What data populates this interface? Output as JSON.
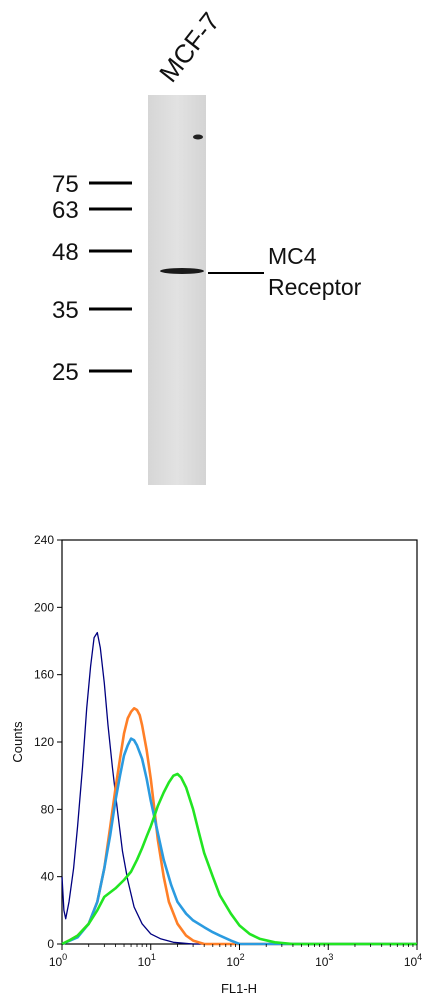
{
  "western_blot": {
    "lane_label": "MCF-7",
    "markers": [
      "75",
      "63",
      "48",
      "35",
      "25"
    ],
    "band_label_line1": "MC4",
    "band_label_line2": "Receptor"
  },
  "chart_data": {
    "type": "line",
    "xlabel": "FL1-H",
    "ylabel": "Counts",
    "xscale": "log",
    "xlim": [
      1,
      10000
    ],
    "ylim": [
      0,
      240
    ],
    "x_ticks": [
      "10",
      "10",
      "10",
      "10",
      "10"
    ],
    "x_tick_exponents": [
      "0",
      "1",
      "2",
      "3",
      "4"
    ],
    "y_ticks": [
      "0",
      "40",
      "80",
      "120",
      "160",
      "200",
      "240"
    ],
    "series": [
      {
        "color": "#000080",
        "x": [
          1,
          1.05,
          1.1,
          1.2,
          1.35,
          1.5,
          1.7,
          1.9,
          2.1,
          2.3,
          2.5,
          2.7,
          3.0,
          3.3,
          3.7,
          4.2,
          4.8,
          5.5,
          6.5,
          8,
          10,
          13,
          18,
          30,
          10000
        ],
        "y": [
          40,
          20,
          15,
          25,
          45,
          70,
          105,
          140,
          165,
          182,
          185,
          176,
          155,
          130,
          105,
          80,
          55,
          38,
          22,
          12,
          6,
          3,
          1,
          0,
          0
        ]
      },
      {
        "color": "#ff7f27",
        "x": [
          1,
          1.2,
          1.5,
          2,
          2.5,
          3,
          3.5,
          4,
          4.5,
          5,
          5.5,
          6,
          6.5,
          7,
          7.5,
          8,
          9,
          10,
          11,
          12,
          14,
          16,
          20,
          25,
          30,
          40,
          60,
          10000
        ],
        "y": [
          0,
          2,
          5,
          12,
          25,
          45,
          70,
          92,
          110,
          125,
          134,
          138,
          140,
          139,
          136,
          130,
          115,
          98,
          80,
          62,
          40,
          25,
          12,
          5,
          2,
          0,
          0,
          0
        ]
      },
      {
        "color": "#2b9be0",
        "x": [
          1,
          1.5,
          2,
          2.5,
          3,
          3.5,
          4,
          4.5,
          5,
          5.5,
          6,
          6.5,
          7,
          8,
          9,
          10,
          12,
          14,
          17,
          20,
          25,
          30,
          40,
          50,
          60,
          80,
          100,
          10000
        ],
        "y": [
          0,
          4,
          12,
          25,
          45,
          65,
          85,
          100,
          112,
          118,
          122,
          121,
          118,
          110,
          98,
          85,
          66,
          50,
          35,
          25,
          18,
          14,
          10,
          7,
          5,
          2,
          0,
          0
        ]
      },
      {
        "color": "#22e522",
        "x": [
          1,
          1.2,
          1.5,
          2,
          2.5,
          3,
          4,
          5,
          6,
          7,
          8,
          9,
          10,
          11,
          12,
          14,
          16,
          18,
          20,
          22,
          25,
          30,
          35,
          40,
          50,
          60,
          80,
          100,
          130,
          170,
          250,
          400,
          1000,
          10000
        ],
        "y": [
          0,
          2,
          5,
          12,
          20,
          28,
          33,
          38,
          43,
          50,
          57,
          64,
          70,
          76,
          82,
          90,
          96,
          100,
          101,
          99,
          93,
          80,
          66,
          54,
          40,
          29,
          18,
          11,
          6,
          3,
          1,
          0,
          0,
          0
        ]
      }
    ]
  }
}
